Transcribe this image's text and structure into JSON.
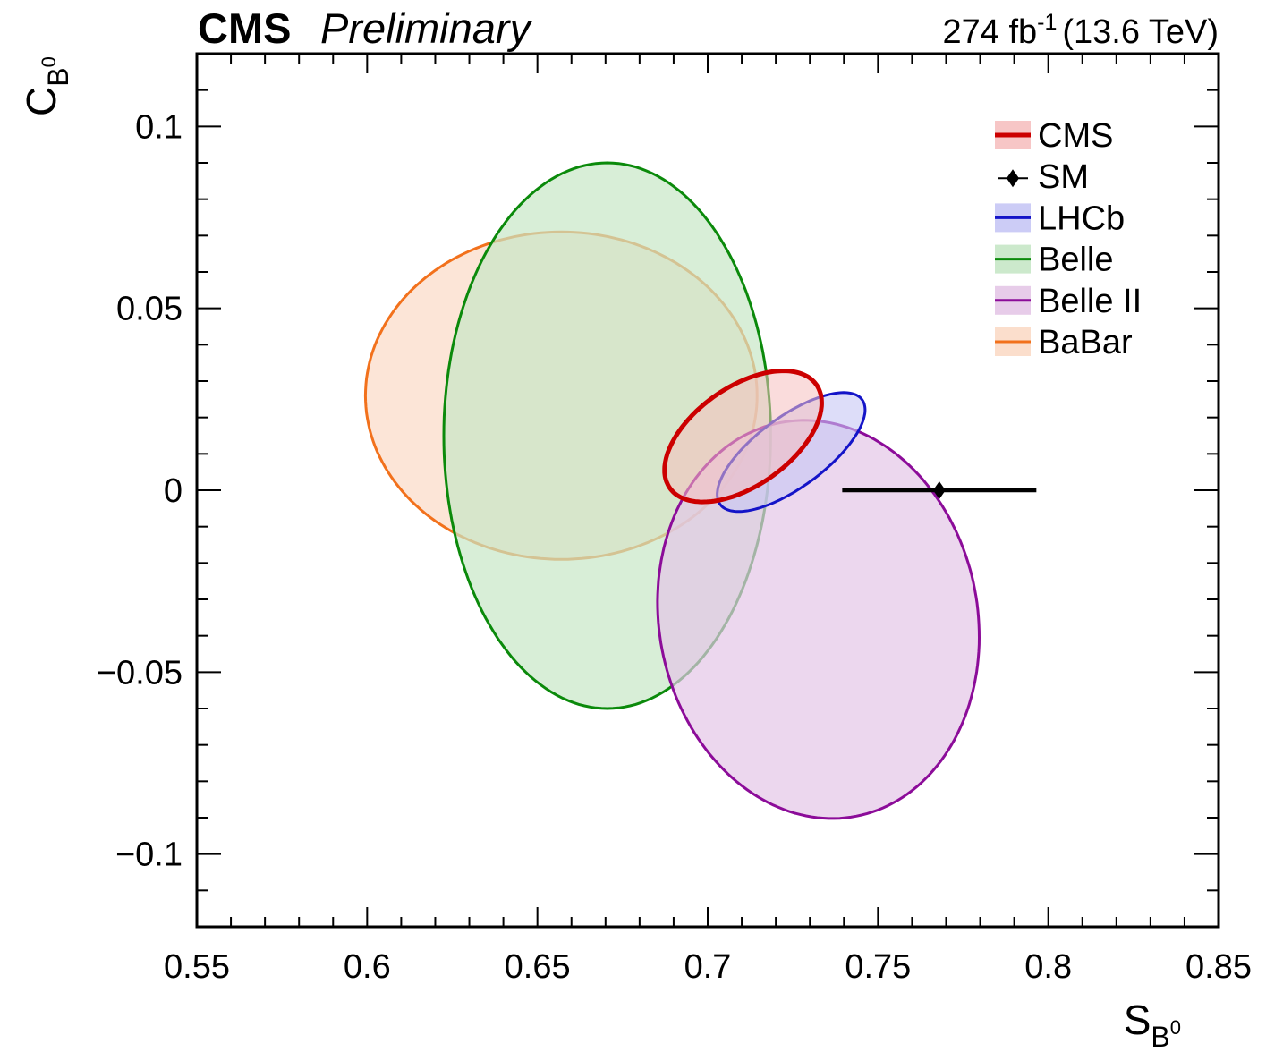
{
  "header": {
    "experiment": "CMS",
    "status": "Preliminary",
    "luminosity": "274 fb",
    "lumi_exp": "-1",
    "energy": "(13.6 TeV)"
  },
  "chart_data": {
    "type": "scatter",
    "xlabel": {
      "base": "S",
      "sub": "B",
      "sup": "0"
    },
    "ylabel": {
      "base": "C",
      "sub": "B",
      "sup": "0"
    },
    "xlim": [
      0.55,
      0.85
    ],
    "ylim": [
      -0.12,
      0.12
    ],
    "x_ticks": [
      0.55,
      0.6,
      0.65,
      0.7,
      0.75,
      0.8,
      0.85
    ],
    "x_tick_labels": [
      "0.55",
      "0.6",
      "0.65",
      "0.7",
      "0.75",
      "0.8",
      "0.85"
    ],
    "y_ticks": [
      -0.1,
      -0.05,
      0,
      0.05,
      0.1
    ],
    "y_tick_labels": [
      "−0.1",
      "−0.05",
      "0",
      "0.05",
      "0.1"
    ],
    "legend_position": "top-right",
    "series": [
      {
        "name": "BaBar",
        "kind": "ellipse",
        "color": "#f2711c",
        "fill": "#fbdac6",
        "fill_opacity": 0.7,
        "center": [
          0.657,
          0.026
        ],
        "semi_axes": [
          0.0575,
          0.045
        ],
        "angle_deg": 0,
        "line_width": 3
      },
      {
        "name": "Belle",
        "kind": "ellipse",
        "color": "#0b8a0b",
        "fill": "#c7e7c6",
        "fill_opacity": 0.7,
        "center": [
          0.6705,
          0.015
        ],
        "semi_axes": [
          0.048,
          0.075
        ],
        "angle_deg": 0,
        "line_width": 3
      },
      {
        "name": "Belle II",
        "kind": "ellipse",
        "color": "#8c0c99",
        "fill": "#e4c6e7",
        "fill_opacity": 0.7,
        "center": [
          0.7325,
          -0.0355
        ],
        "semi_axes": [
          0.05526,
          0.0466
        ],
        "angle_deg": 105,
        "line_width": 3
      },
      {
        "name": "LHCb",
        "kind": "ellipse",
        "color": "#1414c8",
        "fill": "#c6c6f5",
        "fill_opacity": 0.6,
        "center": [
          0.7245,
          0.0105
        ],
        "semi_axes": [
          0.02533,
          0.00985
        ],
        "angle_deg": 34,
        "line_width": 3
      },
      {
        "name": "CMS",
        "kind": "ellipse",
        "color": "#cc0000",
        "fill": "#f6c0c0",
        "fill_opacity": 0.55,
        "center": [
          0.7104,
          0.0148
        ],
        "semi_axes": [
          0.0258,
          0.01383
        ],
        "angle_deg": 32,
        "line_width": 5
      },
      {
        "name": "SM",
        "kind": "point_xerr",
        "color": "#000000",
        "x": 0.768,
        "y": 0.0,
        "xerr": [
          0.0285,
          0.0285
        ]
      }
    ],
    "legend_order": [
      "CMS",
      "SM",
      "LHCb",
      "Belle",
      "Belle II",
      "BaBar"
    ]
  }
}
